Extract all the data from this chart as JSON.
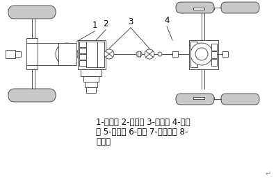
{
  "bg_color": "#ffffff",
  "line_color": "#666666",
  "caption_line1": "1-离合器 2-变速器 3-万向节 4-驱动",
  "caption_line2": "桥 5-差速器 6-半轴 7-主减速器 8-",
  "caption_line3": "传动轴",
  "label1": "1",
  "label2": "2",
  "label3": "3",
  "label4": "4",
  "font_size_caption": 8.5,
  "font_size_label": 8.5,
  "return_symbol": "↵",
  "gray_tire": "#c8c8c8",
  "gray_light": "#e0e0e0",
  "dark_line": "#444444"
}
